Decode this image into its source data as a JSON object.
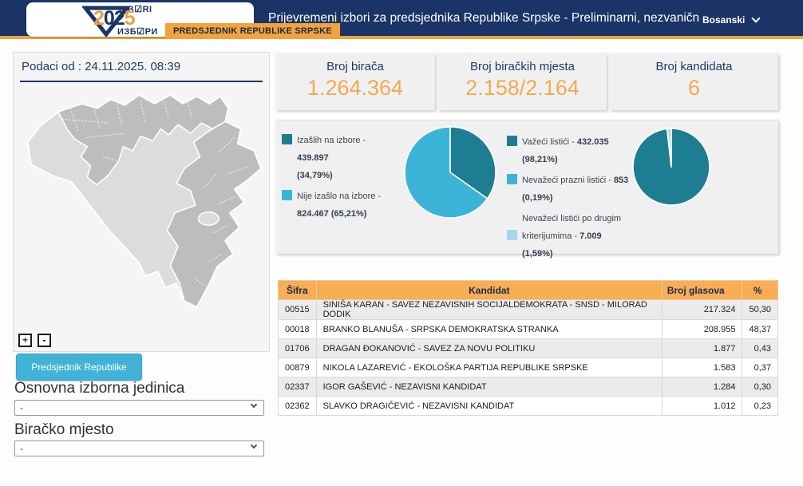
{
  "header": {
    "title": "Prijevremeni izbori za predsjednika Republike Srpske - Preliminarni, nezvanični i nekompletni r",
    "tab": "PREDSJEDNIK REPUBLIKE SRPSKE",
    "language": "Bosanski",
    "logo": {
      "top": "IZB☑RI",
      "year": "2025",
      "bottom": "ИЗБ☑РИ"
    }
  },
  "sidebar": {
    "data_as_of": "Podaci od : 24.11.2025. 08:39",
    "map_zoom_in": "+",
    "map_zoom_out": "-",
    "race_button": "Predsjednik Republike Srpske",
    "unit_label": "Osnovna izborna jedinica",
    "unit_value": "-",
    "station_label": "Biračko mjesto",
    "station_value": "-"
  },
  "stats": [
    {
      "label": "Broj birača",
      "value": "1.264.364"
    },
    {
      "label": "Broj biračkih mjesta",
      "value": "2.158/2.164"
    },
    {
      "label": "Broj kandidata",
      "value": "6"
    }
  ],
  "charts": [
    {
      "name": "turnout",
      "type": "pie",
      "values": [
        34.79,
        65.21
      ],
      "colors": [
        "#1d7d92",
        "#3cb4d8"
      ],
      "labels": [
        "Izašlih na izbore",
        "Nije izašlo na izbore"
      ],
      "displays": [
        "439.897 (34,79%)",
        "824.467 (65,21%)"
      ],
      "legend": [
        {
          "color": "#1d7d92",
          "square_line": 1,
          "lines": [
            [
              "Izašlih na izbore - ",
              "b:439.897"
            ],
            [
              "b:(34,79%)"
            ]
          ]
        },
        {
          "color": "#3cb4d8",
          "square_line": 1,
          "lines": [
            [
              "Nije izašlo na izbore -"
            ],
            [
              "b:824.467 (65,21%)"
            ]
          ]
        }
      ]
    },
    {
      "name": "ballots",
      "type": "pie",
      "values": [
        98.21,
        0.19,
        1.59
      ],
      "colors": [
        "#1d7d92",
        "#3cb4d8",
        "#9ed9ed"
      ],
      "labels": [
        "Važeći listići",
        "Nevažeći prazni listići",
        "Nevažeći listići po drugim kriterijumima"
      ],
      "displays": [
        "432.035 (98,21%)",
        "853 (0,19%)",
        "7.009 (1,59%)"
      ],
      "legend": [
        {
          "color": "#1d7d92",
          "square_line": 1,
          "lines": [
            [
              "Važeći listići - ",
              "b:432.035"
            ],
            [
              "b:(98,21%)"
            ]
          ]
        },
        {
          "color": "#3cb4d8",
          "square_line": 1,
          "lines": [
            [
              "Nevažeći prazni listići - ",
              "b:853"
            ],
            [
              "b:(0,19%)"
            ]
          ]
        },
        {
          "color": "#9ed9ed",
          "square_line": 2,
          "lines": [
            [
              "Nevažeći listići po drugim"
            ],
            [
              "kriterijumima - ",
              "b:7.009"
            ],
            [
              "b:(1,59%)"
            ]
          ]
        }
      ]
    }
  ],
  "table": {
    "columns": [
      "Šifra",
      "Kandidat",
      "Broj glasova",
      "%"
    ],
    "rows": [
      [
        "00515",
        "SINIŠA KARAN - SAVEZ NEZAVISNIH SOCIJALDEMOKRATA - SNSD - MILORAD DODIK",
        "217.324",
        "50,30"
      ],
      [
        "00018",
        "BRANKO BLANUŠA - SRPSKA DEMOKRATSKA STRANKA",
        "208.955",
        "48,37"
      ],
      [
        "01706",
        "DRAGAN ĐOKANOVIĆ - SAVEZ ZA NOVU POLITIKU",
        "1.877",
        "0,43"
      ],
      [
        "00879",
        "NIKOLA LAZAREVIĆ - EKOLOŠKA PARTIJA REPUBLIKE SRPSKE",
        "1.583",
        "0,37"
      ],
      [
        "02337",
        "IGOR GAŠEVIĆ - NEZAVISNI KANDIDAT",
        "1.284",
        "0,30"
      ],
      [
        "02362",
        "SLAVKO DRAGIČEVIĆ - NEZAVISNI KANDIDAT",
        "1.012",
        "0,23"
      ]
    ]
  },
  "colors": {
    "header_navy": "#1a3467",
    "accent_orange": "#f0a43e",
    "value_orange": "#f5a94e",
    "pie_dark": "#1d7d92",
    "pie_light": "#3cb4d8",
    "pie_pale": "#9ed9ed",
    "button_blue": "#41b3d8",
    "table_header": "#f9ad55"
  }
}
